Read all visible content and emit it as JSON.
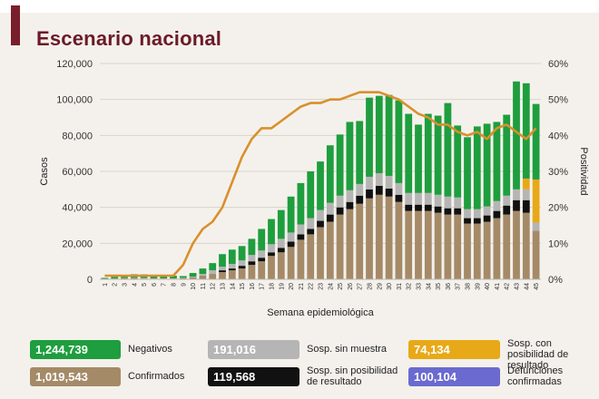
{
  "title": "Escenario nacional",
  "colors": {
    "title": "#6b1a28",
    "negativos": "#1e9e3e",
    "sin_muestra": "#b5b5b5",
    "con_posibilidad": "#e8a918",
    "confirmados": "#a58a68",
    "sin_posibilidad": "#111111",
    "defunciones": "#6a6ad0",
    "positividad": "#d9902c"
  },
  "chart_data": {
    "type": "bar",
    "stacked": true,
    "xlabel": "Semana epidemiológica",
    "ylabel": "Casos",
    "y2label": "Positividad",
    "ylim": [
      0,
      120000
    ],
    "y2lim": [
      0,
      0.6
    ],
    "yticks": [
      "0",
      "20,000",
      "40,000",
      "60,000",
      "80,000",
      "100,000",
      "120,000"
    ],
    "y2ticks": [
      "0%",
      "10%",
      "20%",
      "30%",
      "40%",
      "50%",
      "60%"
    ],
    "categories": [
      "1",
      "2",
      "3",
      "4",
      "5",
      "6",
      "7",
      "8",
      "9",
      "10",
      "11",
      "12",
      "13",
      "14",
      "15",
      "16",
      "17",
      "18",
      "19",
      "20",
      "21",
      "22",
      "23",
      "24",
      "25",
      "26",
      "27",
      "28",
      "29",
      "30",
      "31",
      "32",
      "33",
      "34",
      "35",
      "36",
      "37",
      "38",
      "39",
      "40",
      "41",
      "42",
      "43",
      "44",
      "45"
    ],
    "series": [
      {
        "name": "Confirmados",
        "color_key": "confirmados",
        "values": [
          200,
          300,
          500,
          500,
          400,
          300,
          300,
          300,
          500,
          1000,
          2000,
          3000,
          4000,
          5000,
          6000,
          8000,
          10000,
          13000,
          15000,
          18000,
          22000,
          25000,
          29000,
          32000,
          36000,
          39000,
          42000,
          45000,
          47000,
          46000,
          43000,
          38000,
          38000,
          38000,
          37000,
          36000,
          36000,
          31000,
          31000,
          32000,
          34000,
          36000,
          38000,
          37000,
          27000
        ]
      },
      {
        "name": "Sosp. sin posibilidad de resultado",
        "color_key": "sin_posibilidad",
        "values": [
          0,
          0,
          0,
          0,
          0,
          0,
          0,
          0,
          0,
          0,
          0,
          0,
          1000,
          1000,
          1500,
          2000,
          2000,
          2000,
          2500,
          3000,
          3000,
          3000,
          3500,
          4000,
          4000,
          4000,
          4500,
          5000,
          5000,
          4500,
          4000,
          3500,
          3500,
          3500,
          3500,
          3500,
          3500,
          3000,
          3000,
          3500,
          4000,
          5000,
          6000,
          7000,
          0
        ]
      },
      {
        "name": "Sosp. sin muestra",
        "color_key": "sin_muestra",
        "values": [
          100,
          100,
          200,
          300,
          300,
          200,
          200,
          200,
          300,
          500,
          1000,
          2000,
          2000,
          2500,
          3000,
          3500,
          4000,
          4500,
          5000,
          5000,
          5500,
          6000,
          6000,
          6500,
          6500,
          6500,
          6500,
          7000,
          7000,
          7000,
          6500,
          6500,
          6500,
          6500,
          6500,
          6500,
          6000,
          5000,
          5000,
          5000,
          5500,
          5500,
          6000,
          6000,
          4500
        ]
      },
      {
        "name": "Sosp. con posibilidad de resultado",
        "color_key": "con_posibilidad",
        "values": [
          0,
          0,
          0,
          0,
          0,
          0,
          0,
          0,
          0,
          0,
          0,
          0,
          0,
          0,
          0,
          0,
          0,
          0,
          0,
          0,
          0,
          0,
          0,
          0,
          0,
          0,
          0,
          0,
          0,
          0,
          0,
          0,
          0,
          0,
          0,
          0,
          0,
          0,
          0,
          0,
          0,
          0,
          0,
          6000,
          24000
        ]
      },
      {
        "name": "Negativos",
        "color_key": "negativos",
        "values": [
          500,
          1000,
          1500,
          2000,
          2000,
          2000,
          2000,
          1500,
          1000,
          2000,
          3000,
          4000,
          7000,
          8000,
          8000,
          9000,
          12000,
          14000,
          16000,
          20000,
          23000,
          26000,
          27000,
          32000,
          34000,
          38000,
          35000,
          44000,
          43000,
          45000,
          46000,
          44000,
          38000,
          44000,
          44000,
          52000,
          40000,
          40000,
          46000,
          46000,
          44000,
          45000,
          60000,
          53000,
          42000
        ]
      }
    ],
    "line": {
      "name": "Positividad",
      "axis": "right",
      "values": [
        0.01,
        0.01,
        0.01,
        0.01,
        0.01,
        0.01,
        0.01,
        0.01,
        0.04,
        0.1,
        0.14,
        0.16,
        0.2,
        0.27,
        0.34,
        0.39,
        0.42,
        0.42,
        0.44,
        0.46,
        0.48,
        0.49,
        0.49,
        0.5,
        0.5,
        0.51,
        0.52,
        0.52,
        0.52,
        0.51,
        0.5,
        0.48,
        0.46,
        0.45,
        0.43,
        0.43,
        0.41,
        0.4,
        0.41,
        0.39,
        0.42,
        0.43,
        0.41,
        0.39,
        0.42
      ]
    }
  },
  "legend": [
    {
      "value": "1,244,739",
      "label": "Negativos",
      "color_key": "negativos"
    },
    {
      "value": "191,016",
      "label": "Sosp. sin muestra",
      "color_key": "sin_muestra"
    },
    {
      "value": "74,134",
      "label": "Sosp. con posibilidad de resultado",
      "color_key": "con_posibilidad"
    },
    {
      "value": "1,019,543",
      "label": "Confirmados",
      "color_key": "confirmados"
    },
    {
      "value": "119,568",
      "label": "Sosp. sin posibilidad de resultado",
      "color_key": "sin_posibilidad"
    },
    {
      "value": "100,104",
      "label": "Defunciones confirmadas",
      "color_key": "defunciones"
    }
  ]
}
